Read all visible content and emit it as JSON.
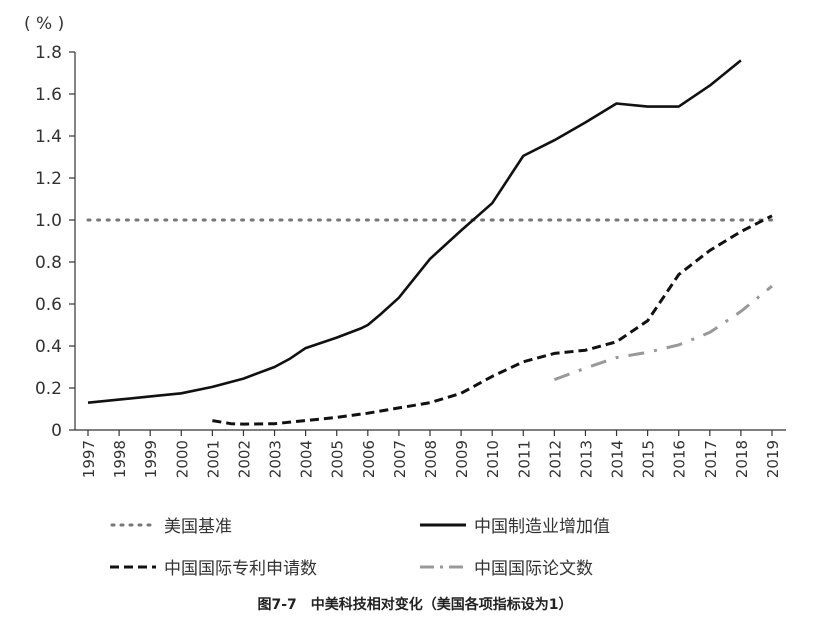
{
  "chart_data": {
    "type": "line",
    "unit_label": "( % )",
    "x": [
      "1997",
      "1998",
      "1999",
      "2000",
      "2001",
      "2002",
      "2003",
      "2004",
      "2005",
      "2006",
      "2007",
      "2008",
      "2009",
      "2010",
      "2011",
      "2012",
      "2013",
      "2014",
      "2015",
      "2016",
      "2017",
      "2018",
      "2019"
    ],
    "ylim": [
      0,
      1.8
    ],
    "yticks": [
      "0",
      "0.2",
      "0.4",
      "0.6",
      "0.8",
      "1.0",
      "1.2",
      "1.4",
      "1.6",
      "1.8"
    ],
    "series": [
      {
        "name": "美国基准",
        "style": "dotted",
        "color": "#777777",
        "points": [
          [
            1997,
            1.0
          ],
          [
            2019,
            1.0
          ]
        ]
      },
      {
        "name": "中国制造业增加值",
        "style": "solid",
        "color": "#111111",
        "points": [
          [
            1997,
            0.13
          ],
          [
            1998,
            0.145
          ],
          [
            1999,
            0.16
          ],
          [
            2000,
            0.175
          ],
          [
            2001,
            0.205
          ],
          [
            2002,
            0.245
          ],
          [
            2003,
            0.3
          ],
          [
            2003.5,
            0.34
          ],
          [
            2004,
            0.39
          ],
          [
            2005,
            0.44
          ],
          [
            2005.8,
            0.485
          ],
          [
            2006,
            0.5
          ],
          [
            2006.4,
            0.55
          ],
          [
            2007,
            0.63
          ],
          [
            2008,
            0.815
          ],
          [
            2009,
            0.95
          ],
          [
            2010,
            1.08
          ],
          [
            2011,
            1.305
          ],
          [
            2012,
            1.38
          ],
          [
            2013,
            1.465
          ],
          [
            2014,
            1.555
          ],
          [
            2015,
            1.54
          ],
          [
            2016,
            1.54
          ],
          [
            2017,
            1.64
          ],
          [
            2018,
            1.76
          ]
        ]
      },
      {
        "name": "中国国际专利申请数",
        "style": "dashed",
        "color": "#111111",
        "points": [
          [
            2001,
            0.045
          ],
          [
            2001.6,
            0.03
          ],
          [
            2002,
            0.028
          ],
          [
            2003,
            0.03
          ],
          [
            2004,
            0.045
          ],
          [
            2005,
            0.06
          ],
          [
            2006,
            0.08
          ],
          [
            2007,
            0.105
          ],
          [
            2008,
            0.13
          ],
          [
            2009,
            0.175
          ],
          [
            2010,
            0.255
          ],
          [
            2011,
            0.325
          ],
          [
            2012,
            0.365
          ],
          [
            2013,
            0.38
          ],
          [
            2014,
            0.42
          ],
          [
            2015,
            0.52
          ],
          [
            2016,
            0.74
          ],
          [
            2017,
            0.855
          ],
          [
            2018,
            0.945
          ],
          [
            2019,
            1.02
          ]
        ]
      },
      {
        "name": "中国国际论文数",
        "style": "dashdot",
        "color": "#999999",
        "points": [
          [
            2012,
            0.24
          ],
          [
            2013,
            0.295
          ],
          [
            2014,
            0.345
          ],
          [
            2015,
            0.37
          ],
          [
            2016,
            0.405
          ],
          [
            2017,
            0.465
          ],
          [
            2018,
            0.565
          ],
          [
            2019,
            0.685
          ]
        ]
      }
    ]
  },
  "legend": {
    "item1": "美国基准",
    "item2": "中国制造业增加值",
    "item3": "中国国际专利申请数",
    "item4": "中国国际论文数"
  },
  "caption": "图7-7　中美科技相对变化（美国各项指标设为1）"
}
